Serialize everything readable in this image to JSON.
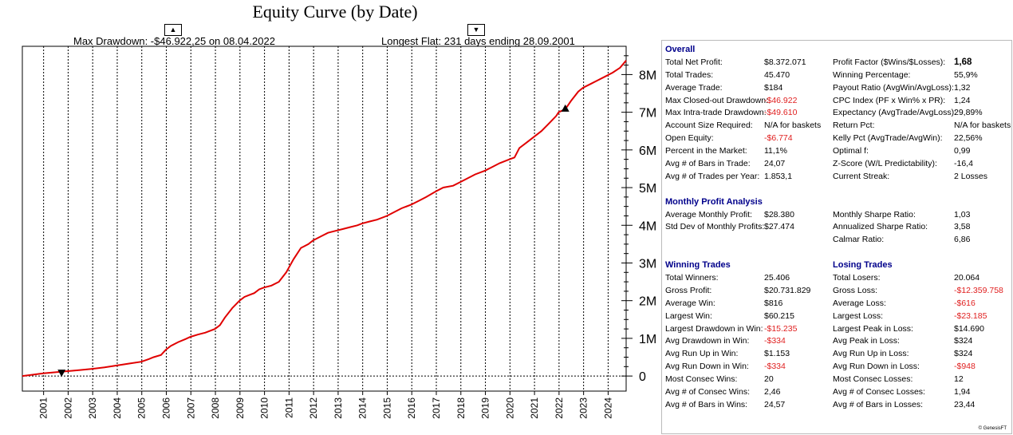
{
  "chart_data": {
    "type": "line",
    "title": "Equity Curve (by Date)",
    "max_drawdown_text": "Max Drawdown: -$46.922,25 on 08.04.2022",
    "longest_flat_text": "Longest Flat: 231 days ending 28.09.2001",
    "up_marker": "▲",
    "down_marker": "▼",
    "x_ticks": [
      "2001",
      "2002",
      "2003",
      "2004",
      "2005",
      "2006",
      "2007",
      "2008",
      "2009",
      "2010",
      "2011",
      "2012",
      "2013",
      "2014",
      "2015",
      "2016",
      "2017",
      "2018",
      "2019",
      "2020",
      "2021",
      "2022",
      "2023",
      "2024"
    ],
    "y_ticks": [
      {
        "v": 0,
        "label": "0"
      },
      {
        "v": 1000000,
        "label": "1M"
      },
      {
        "v": 2000000,
        "label": "2M"
      },
      {
        "v": 3000000,
        "label": "3M"
      },
      {
        "v": 4000000,
        "label": "4M"
      },
      {
        "v": 5000000,
        "label": "5M"
      },
      {
        "v": 6000000,
        "label": "6M"
      },
      {
        "v": 7000000,
        "label": "7M"
      },
      {
        "v": 8000000,
        "label": "8M"
      }
    ],
    "xlim": [
      2000.15,
      2024.75
    ],
    "ylim": [
      -400000,
      8750000
    ],
    "series": [
      {
        "name": "Equity",
        "color": "#e00000",
        "x": [
          2000.15,
          2000.5,
          2001.0,
          2001.5,
          2002.0,
          2002.5,
          2003.0,
          2003.5,
          2004.0,
          2004.5,
          2005.0,
          2005.3,
          2005.5,
          2005.8,
          2006.0,
          2006.2,
          2006.5,
          2006.8,
          2007.0,
          2007.3,
          2007.6,
          2008.0,
          2008.2,
          2008.4,
          2008.7,
          2009.0,
          2009.2,
          2009.4,
          2009.6,
          2009.8,
          2010.0,
          2010.3,
          2010.6,
          2010.9,
          2011.2,
          2011.5,
          2011.8,
          2012.0,
          2012.3,
          2012.6,
          2012.9,
          2013.2,
          2013.5,
          2013.8,
          2014.0,
          2014.3,
          2014.6,
          2015.0,
          2015.3,
          2015.6,
          2016.0,
          2016.3,
          2016.6,
          2017.0,
          2017.3,
          2017.7,
          2018.0,
          2018.3,
          2018.6,
          2019.0,
          2019.3,
          2019.6,
          2020.0,
          2020.2,
          2020.4,
          2020.7,
          2021.0,
          2021.3,
          2021.6,
          2021.9,
          2022.0,
          2022.27,
          2022.5,
          2022.8,
          2023.0,
          2023.3,
          2023.6,
          2023.9,
          2024.2,
          2024.5,
          2024.75
        ],
        "y": [
          0,
          30000,
          70000,
          100000,
          130000,
          160000,
          190000,
          230000,
          280000,
          330000,
          380000,
          450000,
          500000,
          560000,
          700000,
          800000,
          900000,
          980000,
          1040000,
          1100000,
          1150000,
          1250000,
          1350000,
          1550000,
          1800000,
          2000000,
          2100000,
          2150000,
          2200000,
          2300000,
          2350000,
          2400000,
          2500000,
          2750000,
          3100000,
          3400000,
          3500000,
          3600000,
          3700000,
          3800000,
          3850000,
          3900000,
          3950000,
          4000000,
          4050000,
          4100000,
          4150000,
          4250000,
          4350000,
          4450000,
          4550000,
          4650000,
          4750000,
          4900000,
          5000000,
          5050000,
          5150000,
          5250000,
          5350000,
          5450000,
          5550000,
          5650000,
          5750000,
          5800000,
          6050000,
          6200000,
          6350000,
          6500000,
          6700000,
          6900000,
          7000000,
          7080000,
          7300000,
          7550000,
          7650000,
          7750000,
          7850000,
          7950000,
          8050000,
          8180000,
          8372071
        ]
      }
    ],
    "markers": [
      {
        "type": "down",
        "x": 2001.75,
        "y": 0
      },
      {
        "type": "up",
        "x": 2022.27,
        "y": 7080000
      }
    ]
  },
  "stats": {
    "overall": {
      "heading": "Overall",
      "left": [
        {
          "label": "Total Net Profit:",
          "value": "$8.372.071",
          "neg": false
        },
        {
          "label": "Total Trades:",
          "value": "45.470",
          "neg": false
        },
        {
          "label": "Average Trade:",
          "value": "$184",
          "neg": false
        },
        {
          "label": "Max Closed-out Drawdown:",
          "value": "-$46.922",
          "neg": true
        },
        {
          "label": "Max Intra-trade Drawdown:",
          "value": "-$49.610",
          "neg": true
        },
        {
          "label": "Account Size Required:",
          "value": "N/A for baskets",
          "neg": false
        },
        {
          "label": "Open Equity:",
          "value": "-$6.774",
          "neg": true
        },
        {
          "label": "Percent in the Market:",
          "value": "11,1%",
          "neg": false
        },
        {
          "label": "Avg # of Bars in Trade:",
          "value": "24,07",
          "neg": false
        },
        {
          "label": "Avg # of Trades per Year:",
          "value": "1.853,1",
          "neg": false
        }
      ],
      "right": [
        {
          "label": "Profit Factor ($Wins/$Losses):",
          "value": "1,68",
          "neg": false,
          "bold": true
        },
        {
          "label": "Winning Percentage:",
          "value": "55,9%",
          "neg": false
        },
        {
          "label": "Payout Ratio (AvgWin/AvgLoss):",
          "value": "1,32",
          "neg": false
        },
        {
          "label": "CPC Index (PF x Win% x PR):",
          "value": "1,24",
          "neg": false
        },
        {
          "label": "Expectancy (AvgTrade/AvgLoss):",
          "value": "29,89%",
          "neg": false
        },
        {
          "label": "Return Pct:",
          "value": "N/A for baskets",
          "neg": false
        },
        {
          "label": "Kelly Pct (AvgTrade/AvgWin):",
          "value": "22,56%",
          "neg": false
        },
        {
          "label": "Optimal f:",
          "value": "0,99",
          "neg": false
        },
        {
          "label": "Z-Score (W/L Predictability):",
          "value": "-16,4",
          "neg": false
        },
        {
          "label": "Current Streak:",
          "value": "2 Losses",
          "neg": false
        }
      ]
    },
    "monthly": {
      "heading": "Monthly Profit Analysis",
      "left": [
        {
          "label": "Average Monthly Profit:",
          "value": "$28.380",
          "neg": false
        },
        {
          "label": "Std Dev of Monthly Profits:",
          "value": "$27.474",
          "neg": false
        }
      ],
      "right": [
        {
          "label": "Monthly Sharpe Ratio:",
          "value": "1,03",
          "neg": false
        },
        {
          "label": "Annualized Sharpe Ratio:",
          "value": "3,58",
          "neg": false
        },
        {
          "label": "Calmar Ratio:",
          "value": "6,86",
          "neg": false
        }
      ]
    },
    "winning": {
      "heading": "Winning Trades",
      "rows": [
        {
          "label": "Total Winners:",
          "value": "25.406",
          "neg": false
        },
        {
          "label": "Gross Profit:",
          "value": "$20.731.829",
          "neg": false
        },
        {
          "label": "Average Win:",
          "value": "$816",
          "neg": false
        },
        {
          "label": "Largest Win:",
          "value": "$60.215",
          "neg": false
        },
        {
          "label": "Largest Drawdown in Win:",
          "value": "-$15.235",
          "neg": true
        },
        {
          "label": "Avg Drawdown in Win:",
          "value": "-$334",
          "neg": true
        },
        {
          "label": "Avg Run Up in Win:",
          "value": "$1.153",
          "neg": false
        },
        {
          "label": "Avg Run Down in Win:",
          "value": "-$334",
          "neg": true
        },
        {
          "label": "Most Consec Wins:",
          "value": "20",
          "neg": false
        },
        {
          "label": "Avg # of Consec Wins:",
          "value": "2,46",
          "neg": false
        },
        {
          "label": "Avg # of Bars in Wins:",
          "value": "24,57",
          "neg": false
        }
      ]
    },
    "losing": {
      "heading": "Losing Trades",
      "rows": [
        {
          "label": "Total Losers:",
          "value": "20.064",
          "neg": false
        },
        {
          "label": "Gross Loss:",
          "value": "-$12.359.758",
          "neg": true
        },
        {
          "label": "Average Loss:",
          "value": "-$616",
          "neg": true
        },
        {
          "label": "Largest Loss:",
          "value": "-$23.185",
          "neg": true
        },
        {
          "label": "Largest Peak in Loss:",
          "value": "$14.690",
          "neg": false
        },
        {
          "label": "Avg Peak in Loss:",
          "value": "$324",
          "neg": false
        },
        {
          "label": "Avg Run Up in Loss:",
          "value": "$324",
          "neg": false
        },
        {
          "label": "Avg Run Down in Loss:",
          "value": "-$948",
          "neg": true
        },
        {
          "label": "Most Consec Losses:",
          "value": "12",
          "neg": false
        },
        {
          "label": "Avg # of Consec Losses:",
          "value": "1,94",
          "neg": false
        },
        {
          "label": "Avg # of Bars in Losses:",
          "value": "23,44",
          "neg": false
        }
      ]
    },
    "copyright": "© GenesisFT"
  }
}
